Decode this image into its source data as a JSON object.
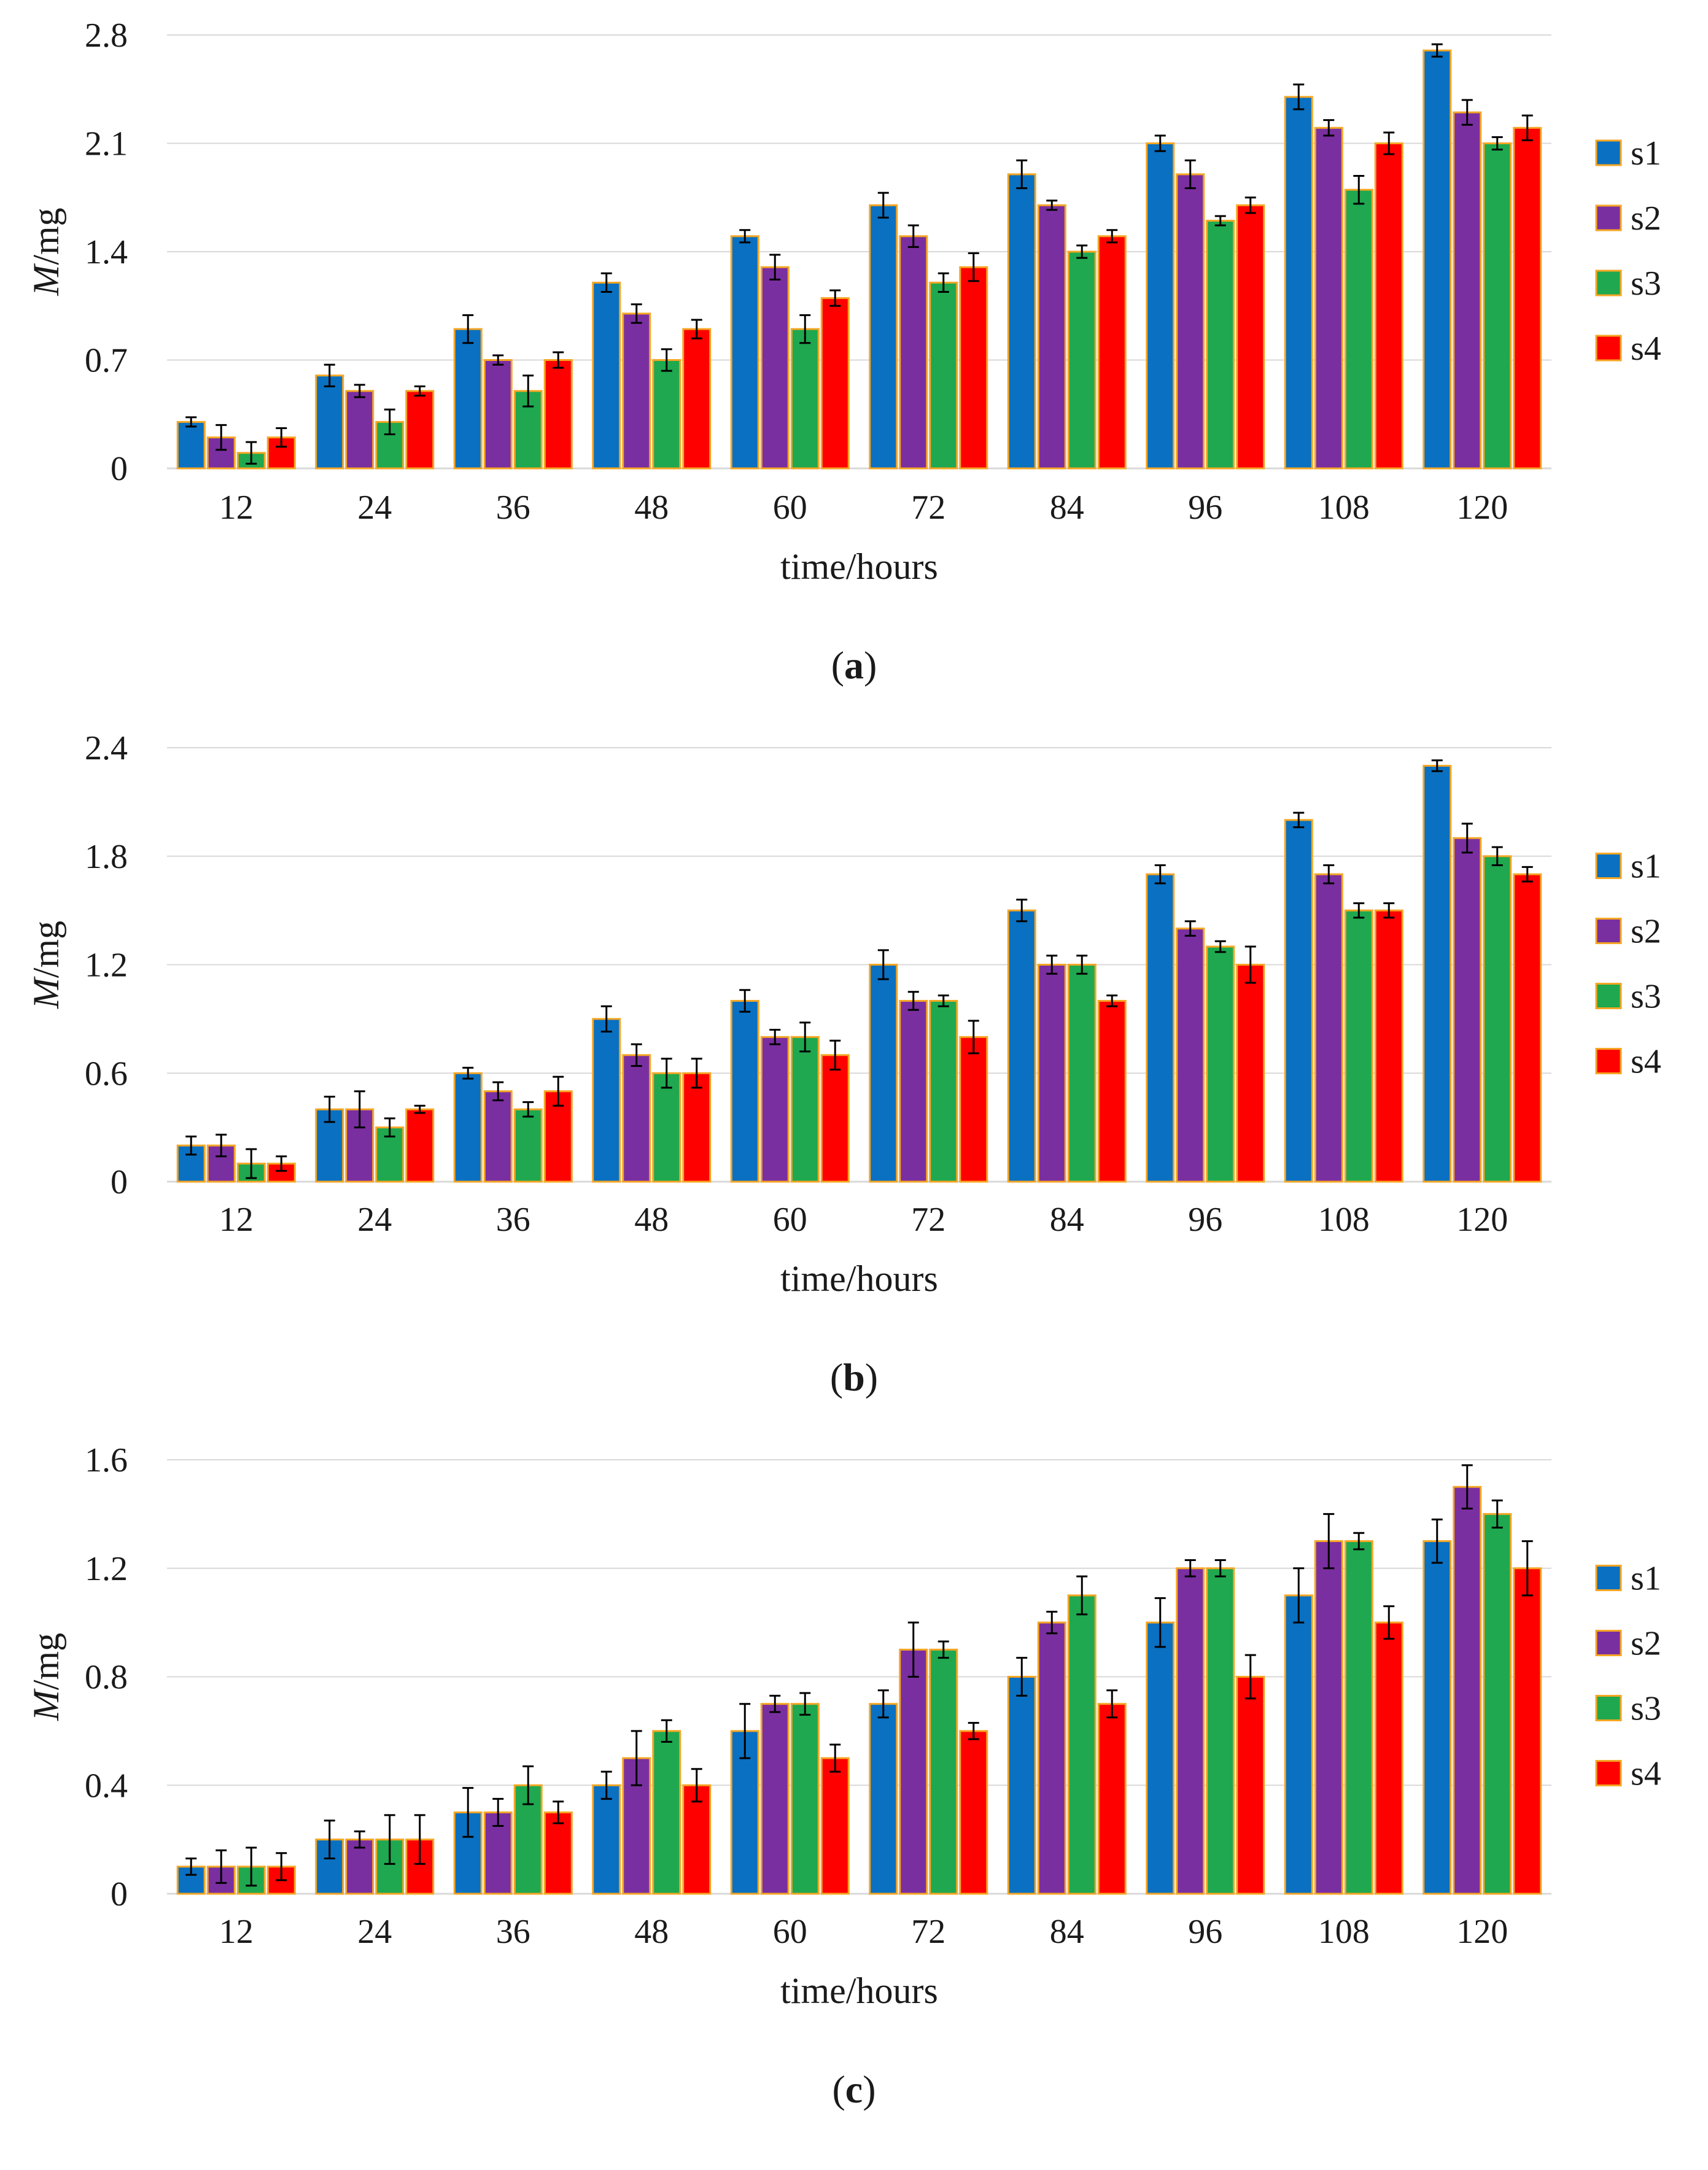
{
  "legend_colors": {
    "s1": "#0a70c1",
    "s2": "#7a2fa0",
    "s3": "#1fa84f",
    "s4": "#ff0000"
  },
  "chart_data": [
    {
      "type": "bar",
      "caption": "a",
      "title": "",
      "xlabel": "time/hours",
      "ylabel": "M/mg",
      "ylabel_italic": "M",
      "ylabel_rest": "/mg",
      "categories": [
        "12",
        "24",
        "36",
        "48",
        "60",
        "72",
        "84",
        "96",
        "108",
        "120"
      ],
      "ylim": [
        0,
        2.8
      ],
      "yticks": [
        "0",
        "0.7",
        "1.4",
        "2.1",
        "2.8"
      ],
      "grid": true,
      "legend": "right",
      "series": [
        {
          "name": "s1",
          "values": [
            0.3,
            0.6,
            0.9,
            1.2,
            1.5,
            1.7,
            1.9,
            2.1,
            2.4,
            2.7
          ],
          "errors": [
            0.03,
            0.07,
            0.09,
            0.06,
            0.04,
            0.08,
            0.09,
            0.05,
            0.08,
            0.04
          ]
        },
        {
          "name": "s2",
          "values": [
            0.2,
            0.5,
            0.7,
            1.0,
            1.3,
            1.5,
            1.7,
            1.9,
            2.2,
            2.3
          ],
          "errors": [
            0.08,
            0.04,
            0.03,
            0.06,
            0.08,
            0.07,
            0.03,
            0.09,
            0.05,
            0.08
          ]
        },
        {
          "name": "s3",
          "values": [
            0.1,
            0.3,
            0.5,
            0.7,
            0.9,
            1.2,
            1.4,
            1.6,
            1.8,
            2.1
          ],
          "errors": [
            0.07,
            0.08,
            0.1,
            0.07,
            0.09,
            0.06,
            0.04,
            0.03,
            0.09,
            0.04
          ]
        },
        {
          "name": "s4",
          "values": [
            0.2,
            0.5,
            0.7,
            0.9,
            1.1,
            1.3,
            1.5,
            1.7,
            2.1,
            2.2
          ],
          "errors": [
            0.06,
            0.03,
            0.05,
            0.06,
            0.05,
            0.09,
            0.04,
            0.05,
            0.07,
            0.08
          ]
        }
      ]
    },
    {
      "type": "bar",
      "caption": "b",
      "title": "",
      "xlabel": "time/hours",
      "ylabel": "M/mg",
      "ylabel_italic": "M",
      "ylabel_rest": "/mg",
      "categories": [
        "12",
        "24",
        "36",
        "48",
        "60",
        "72",
        "84",
        "96",
        "108",
        "120"
      ],
      "ylim": [
        0,
        2.4
      ],
      "yticks": [
        "0",
        "0.6",
        "1.2",
        "1.8",
        "2.4"
      ],
      "grid": true,
      "legend": "right",
      "series": [
        {
          "name": "s1",
          "values": [
            0.2,
            0.4,
            0.6,
            0.9,
            1.0,
            1.2,
            1.5,
            1.7,
            2.0,
            2.3
          ],
          "errors": [
            0.05,
            0.07,
            0.03,
            0.07,
            0.06,
            0.08,
            0.06,
            0.05,
            0.04,
            0.03
          ]
        },
        {
          "name": "s2",
          "values": [
            0.2,
            0.4,
            0.5,
            0.7,
            0.8,
            1.0,
            1.2,
            1.4,
            1.7,
            1.9
          ],
          "errors": [
            0.06,
            0.1,
            0.05,
            0.06,
            0.04,
            0.05,
            0.05,
            0.04,
            0.05,
            0.08
          ]
        },
        {
          "name": "s3",
          "values": [
            0.1,
            0.3,
            0.4,
            0.6,
            0.8,
            1.0,
            1.2,
            1.3,
            1.5,
            1.8
          ],
          "errors": [
            0.08,
            0.05,
            0.04,
            0.08,
            0.08,
            0.03,
            0.05,
            0.03,
            0.04,
            0.05
          ]
        },
        {
          "name": "s4",
          "values": [
            0.1,
            0.4,
            0.5,
            0.6,
            0.7,
            0.8,
            1.0,
            1.2,
            1.5,
            1.7
          ],
          "errors": [
            0.04,
            0.02,
            0.08,
            0.08,
            0.08,
            0.09,
            0.03,
            0.1,
            0.04,
            0.04
          ]
        }
      ]
    },
    {
      "type": "bar",
      "caption": "c",
      "title": "",
      "xlabel": "time/hours",
      "ylabel": "M/mg",
      "ylabel_italic": "M",
      "ylabel_rest": "/mg",
      "categories": [
        "12",
        "24",
        "36",
        "48",
        "60",
        "72",
        "84",
        "96",
        "108",
        "120"
      ],
      "ylim": [
        0,
        1.6
      ],
      "yticks": [
        "0",
        "0.4",
        "0.8",
        "1.2",
        "1.6"
      ],
      "grid": true,
      "legend": "right",
      "series": [
        {
          "name": "s1",
          "values": [
            0.1,
            0.2,
            0.3,
            0.4,
            0.6,
            0.7,
            0.8,
            1.0,
            1.1,
            1.3
          ],
          "errors": [
            0.03,
            0.07,
            0.09,
            0.05,
            0.1,
            0.05,
            0.07,
            0.09,
            0.1,
            0.08
          ]
        },
        {
          "name": "s2",
          "values": [
            0.1,
            0.2,
            0.3,
            0.5,
            0.7,
            0.9,
            1.0,
            1.2,
            1.3,
            1.5
          ],
          "errors": [
            0.06,
            0.03,
            0.05,
            0.1,
            0.03,
            0.1,
            0.04,
            0.03,
            0.1,
            0.08
          ]
        },
        {
          "name": "s3",
          "values": [
            0.1,
            0.2,
            0.4,
            0.6,
            0.7,
            0.9,
            1.1,
            1.2,
            1.3,
            1.4
          ],
          "errors": [
            0.07,
            0.09,
            0.07,
            0.04,
            0.04,
            0.03,
            0.07,
            0.03,
            0.03,
            0.05
          ]
        },
        {
          "name": "s4",
          "values": [
            0.1,
            0.2,
            0.3,
            0.4,
            0.5,
            0.6,
            0.7,
            0.8,
            1.0,
            1.2
          ],
          "errors": [
            0.05,
            0.09,
            0.04,
            0.06,
            0.05,
            0.03,
            0.05,
            0.08,
            0.06,
            0.1
          ]
        }
      ]
    }
  ]
}
